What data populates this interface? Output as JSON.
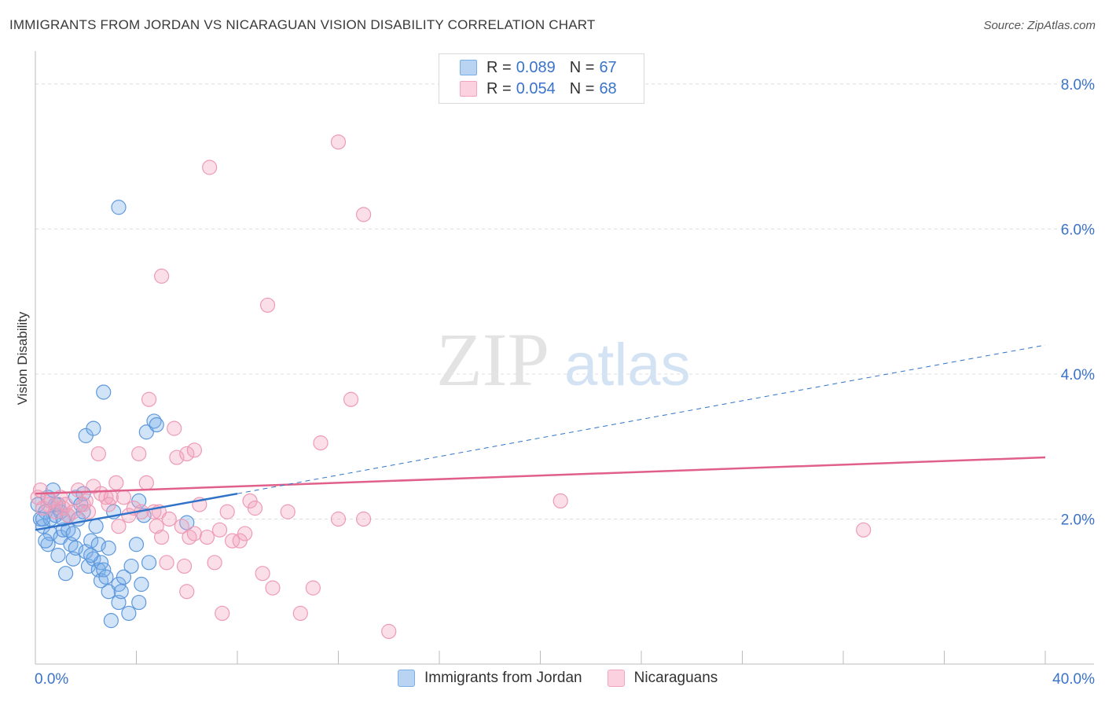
{
  "title": "IMMIGRANTS FROM JORDAN VS NICARAGUAN VISION DISABILITY CORRELATION CHART",
  "source": "Source: ZipAtlas.com",
  "legend": {
    "rows": [
      {
        "r_label": "R =",
        "r_value": "0.089",
        "n_label": "N =",
        "n_value": "67"
      },
      {
        "r_label": "R =",
        "r_value": "0.054",
        "n_label": "N =",
        "n_value": "68"
      }
    ]
  },
  "bottom_legend": [
    "Immigrants from Jordan",
    "Nicaraguans"
  ],
  "watermark": {
    "zip": "ZIP",
    "atlas": "atlas"
  },
  "chart_data": {
    "type": "scatter",
    "title": "IMMIGRANTS FROM JORDAN VS NICARAGUAN VISION DISABILITY CORRELATION CHART",
    "xlabel": "",
    "ylabel": "Vision Disability",
    "xlim": [
      0,
      40
    ],
    "ylim": [
      0,
      8.4
    ],
    "x_tick_labels": [
      "0.0%",
      "40.0%"
    ],
    "y_ticks": [
      2,
      4,
      6,
      8
    ],
    "y_tick_labels": [
      "2.0%",
      "4.0%",
      "6.0%",
      "8.0%"
    ],
    "grid": true,
    "colors": {
      "jordan": "#7aaee8",
      "jordan_line": "#2f72c8",
      "nicaragua": "#f2a3bd",
      "nicaragua_line": "#e0608a",
      "axis_label": "#3a73c9"
    },
    "series": [
      {
        "name": "Immigrants from Jordan",
        "R": 0.089,
        "N": 67,
        "trend": {
          "x": [
            0,
            8
          ],
          "y": [
            1.85,
            2.35
          ]
        },
        "trend_extended": {
          "x": [
            8,
            40
          ],
          "y": [
            2.35,
            4.4
          ]
        },
        "points": [
          [
            0.1,
            2.2
          ],
          [
            0.2,
            2.0
          ],
          [
            0.3,
            1.9
          ],
          [
            0.4,
            2.1
          ],
          [
            0.5,
            1.65
          ],
          [
            0.5,
            2.3
          ],
          [
            0.6,
            2.0
          ],
          [
            0.6,
            1.8
          ],
          [
            0.7,
            2.4
          ],
          [
            0.8,
            2.05
          ],
          [
            0.9,
            1.5
          ],
          [
            0.9,
            2.2
          ],
          [
            1.0,
            1.75
          ],
          [
            1.0,
            2.1
          ],
          [
            1.1,
            1.85
          ],
          [
            1.2,
            1.25
          ],
          [
            1.3,
            1.85
          ],
          [
            1.3,
            2.05
          ],
          [
            1.4,
            1.65
          ],
          [
            1.5,
            1.8
          ],
          [
            1.5,
            1.45
          ],
          [
            1.6,
            1.6
          ],
          [
            1.6,
            2.3
          ],
          [
            1.7,
            2.0
          ],
          [
            1.8,
            2.2
          ],
          [
            1.9,
            2.1
          ],
          [
            2.0,
            1.55
          ],
          [
            2.0,
            3.15
          ],
          [
            2.1,
            1.35
          ],
          [
            2.2,
            1.7
          ],
          [
            2.3,
            3.25
          ],
          [
            2.3,
            1.45
          ],
          [
            2.4,
            1.9
          ],
          [
            2.5,
            1.3
          ],
          [
            2.5,
            1.65
          ],
          [
            2.6,
            1.15
          ],
          [
            2.6,
            1.4
          ],
          [
            2.7,
            1.3
          ],
          [
            2.7,
            3.75
          ],
          [
            2.8,
            1.2
          ],
          [
            2.9,
            1.6
          ],
          [
            2.9,
            1.0
          ],
          [
            3.0,
            0.6
          ],
          [
            3.1,
            2.1
          ],
          [
            3.3,
            0.85
          ],
          [
            3.3,
            1.1
          ],
          [
            3.4,
            1.0
          ],
          [
            3.5,
            1.2
          ],
          [
            3.7,
            0.7
          ],
          [
            3.8,
            1.35
          ],
          [
            4.0,
            1.65
          ],
          [
            4.1,
            0.85
          ],
          [
            4.1,
            2.25
          ],
          [
            4.2,
            1.1
          ],
          [
            4.3,
            2.05
          ],
          [
            4.4,
            3.2
          ],
          [
            4.5,
            1.4
          ],
          [
            4.7,
            3.35
          ],
          [
            4.8,
            3.3
          ],
          [
            6.0,
            1.95
          ],
          [
            3.3,
            6.3
          ],
          [
            0.3,
            2.0
          ],
          [
            0.8,
            2.2
          ],
          [
            1.1,
            2.0
          ],
          [
            0.4,
            1.7
          ],
          [
            1.9,
            2.35
          ],
          [
            2.2,
            1.5
          ]
        ]
      },
      {
        "name": "Nicaraguans",
        "R": 0.054,
        "N": 68,
        "trend": {
          "x": [
            0,
            40
          ],
          "y": [
            2.35,
            2.85
          ]
        },
        "points": [
          [
            0.1,
            2.3
          ],
          [
            0.2,
            2.4
          ],
          [
            0.3,
            2.15
          ],
          [
            0.5,
            2.2
          ],
          [
            0.6,
            2.25
          ],
          [
            0.8,
            2.1
          ],
          [
            1.0,
            2.3
          ],
          [
            1.1,
            2.15
          ],
          [
            1.2,
            2.2
          ],
          [
            1.3,
            2.05
          ],
          [
            1.5,
            2.1
          ],
          [
            1.7,
            2.4
          ],
          [
            1.9,
            2.2
          ],
          [
            2.0,
            2.25
          ],
          [
            2.1,
            2.1
          ],
          [
            2.3,
            2.45
          ],
          [
            2.5,
            2.9
          ],
          [
            2.6,
            2.35
          ],
          [
            2.8,
            2.3
          ],
          [
            2.9,
            2.2
          ],
          [
            3.0,
            2.3
          ],
          [
            3.2,
            2.5
          ],
          [
            3.3,
            1.9
          ],
          [
            3.5,
            2.3
          ],
          [
            3.7,
            2.05
          ],
          [
            3.9,
            2.15
          ],
          [
            4.1,
            2.9
          ],
          [
            4.2,
            2.1
          ],
          [
            4.4,
            2.5
          ],
          [
            4.5,
            3.65
          ],
          [
            4.7,
            2.1
          ],
          [
            4.8,
            1.9
          ],
          [
            4.9,
            2.1
          ],
          [
            5.0,
            1.75
          ],
          [
            5.2,
            1.4
          ],
          [
            5.3,
            2.0
          ],
          [
            5.5,
            3.25
          ],
          [
            5.6,
            2.85
          ],
          [
            5.9,
            1.35
          ],
          [
            5.8,
            1.9
          ],
          [
            6.0,
            2.9
          ],
          [
            6.1,
            1.75
          ],
          [
            6.3,
            2.95
          ],
          [
            6.3,
            1.8
          ],
          [
            6.5,
            2.2
          ],
          [
            6.8,
            1.75
          ],
          [
            7.1,
            1.4
          ],
          [
            7.3,
            1.85
          ],
          [
            7.6,
            2.1
          ],
          [
            7.8,
            1.7
          ],
          [
            8.1,
            1.7
          ],
          [
            8.3,
            1.8
          ],
          [
            8.5,
            2.25
          ],
          [
            8.7,
            2.15
          ],
          [
            9.0,
            1.25
          ],
          [
            9.4,
            1.05
          ],
          [
            10.0,
            2.1
          ],
          [
            11.3,
            3.05
          ],
          [
            12.0,
            2.0
          ],
          [
            12.5,
            3.65
          ],
          [
            13.0,
            2.0
          ],
          [
            5.0,
            5.35
          ],
          [
            6.9,
            6.85
          ],
          [
            9.2,
            4.95
          ],
          [
            12.0,
            7.2
          ],
          [
            13.0,
            6.2
          ],
          [
            20.8,
            2.25
          ],
          [
            32.8,
            1.85
          ]
        ],
        "low_points": [
          [
            7.4,
            0.7
          ],
          [
            10.5,
            0.7
          ],
          [
            11.0,
            1.05
          ],
          [
            14.0,
            0.45
          ],
          [
            6.0,
            1.0
          ]
        ]
      }
    ]
  }
}
